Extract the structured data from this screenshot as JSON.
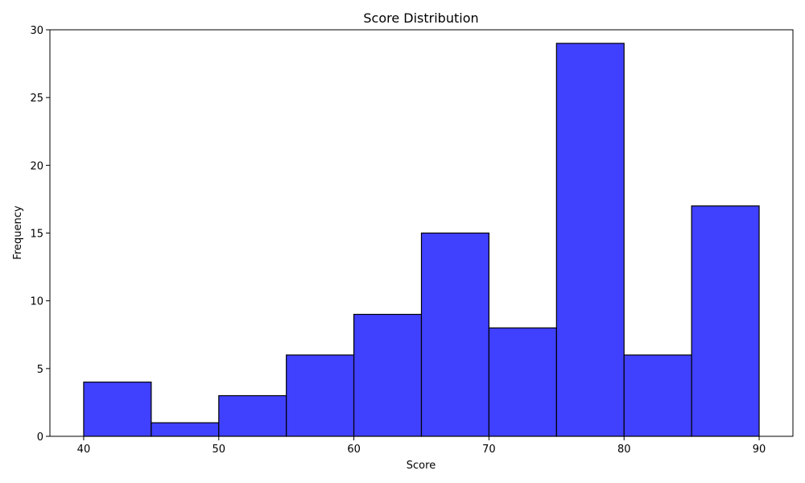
{
  "chart_data": {
    "type": "bar",
    "title": "Score Distribution",
    "xlabel": "Score",
    "ylabel": "Frequency",
    "bins": [
      {
        "start": 40,
        "end": 45,
        "value": 4
      },
      {
        "start": 45,
        "end": 50,
        "value": 1
      },
      {
        "start": 50,
        "end": 55,
        "value": 3
      },
      {
        "start": 55,
        "end": 60,
        "value": 6
      },
      {
        "start": 60,
        "end": 65,
        "value": 9
      },
      {
        "start": 65,
        "end": 70,
        "value": 15
      },
      {
        "start": 70,
        "end": 75,
        "value": 8
      },
      {
        "start": 75,
        "end": 80,
        "value": 29
      },
      {
        "start": 80,
        "end": 85,
        "value": 6
      },
      {
        "start": 85,
        "end": 90,
        "value": 17
      }
    ],
    "xlim": [
      37.5,
      92.5
    ],
    "ylim": [
      0,
      30
    ],
    "xticks": [
      40,
      50,
      60,
      70,
      80,
      90
    ],
    "yticks": [
      0,
      5,
      10,
      15,
      20,
      25,
      30
    ],
    "bar_color": "#4040ff",
    "edge_color": "#000000",
    "grid": false,
    "legend": "none"
  }
}
